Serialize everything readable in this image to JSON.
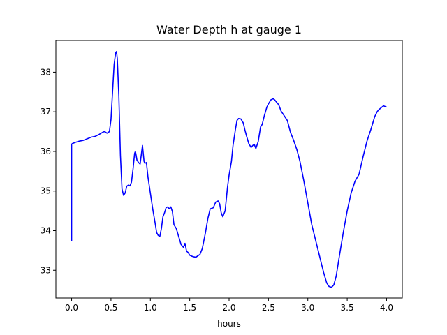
{
  "chart_data": {
    "type": "line",
    "title": "Water Depth h at gauge 1",
    "xlabel": "hours",
    "ylabel": "",
    "xlim": [
      -0.2,
      4.2
    ],
    "ylim": [
      32.3,
      38.8
    ],
    "xticks": [
      "0.0",
      "0.5",
      "1.0",
      "1.5",
      "2.0",
      "2.5",
      "3.0",
      "3.5",
      "4.0"
    ],
    "yticks": [
      "33",
      "34",
      "35",
      "36",
      "37",
      "38"
    ],
    "grid": false,
    "line_color": "#0000ff",
    "series": [
      {
        "x": [
          0.0,
          0.0,
          0.01,
          0.05,
          0.1,
          0.15,
          0.2,
          0.25,
          0.3,
          0.35,
          0.4,
          0.42,
          0.45,
          0.48,
          0.5,
          0.52,
          0.54,
          0.56,
          0.57,
          0.58,
          0.6,
          0.62,
          0.64,
          0.66,
          0.68,
          0.7,
          0.72,
          0.74,
          0.76,
          0.78,
          0.8,
          0.81,
          0.82,
          0.83,
          0.85,
          0.87,
          0.9,
          0.91,
          0.92,
          0.93,
          0.95,
          0.97,
          1.0,
          1.03,
          1.06,
          1.08,
          1.1,
          1.12,
          1.14,
          1.16,
          1.18,
          1.2,
          1.22,
          1.24,
          1.26,
          1.28,
          1.3,
          1.33,
          1.36,
          1.39,
          1.42,
          1.44,
          1.46,
          1.48,
          1.5,
          1.52,
          1.55,
          1.58,
          1.6,
          1.63,
          1.66,
          1.7,
          1.73,
          1.76,
          1.8,
          1.83,
          1.86,
          1.88,
          1.9,
          1.92,
          1.95,
          1.98,
          2.0,
          2.03,
          2.05,
          2.08,
          2.1,
          2.12,
          2.15,
          2.18,
          2.2,
          2.22,
          2.25,
          2.28,
          2.3,
          2.32,
          2.34,
          2.37,
          2.4,
          2.42,
          2.45,
          2.48,
          2.5,
          2.53,
          2.56,
          2.58,
          2.6,
          2.63,
          2.66,
          2.7,
          2.74,
          2.78,
          2.82,
          2.86,
          2.9,
          2.95,
          3.0,
          3.05,
          3.1,
          3.15,
          3.2,
          3.24,
          3.27,
          3.3,
          3.33,
          3.36,
          3.4,
          3.45,
          3.5,
          3.55,
          3.6,
          3.65,
          3.7,
          3.75,
          3.8,
          3.85,
          3.88,
          3.9,
          3.93,
          3.96,
          4.0
        ],
        "y": [
          33.73,
          36.18,
          36.2,
          36.23,
          36.26,
          36.28,
          36.32,
          36.36,
          36.38,
          36.43,
          36.49,
          36.5,
          36.46,
          36.5,
          36.8,
          37.5,
          38.2,
          38.5,
          38.52,
          38.35,
          37.4,
          35.9,
          35.05,
          34.89,
          34.95,
          35.12,
          35.15,
          35.13,
          35.22,
          35.55,
          35.95,
          36.0,
          35.9,
          35.78,
          35.72,
          35.68,
          36.15,
          35.95,
          35.75,
          35.7,
          35.72,
          35.35,
          34.95,
          34.55,
          34.2,
          33.95,
          33.88,
          33.85,
          34.05,
          34.35,
          34.45,
          34.58,
          34.6,
          34.55,
          34.6,
          34.48,
          34.15,
          34.05,
          33.85,
          33.65,
          33.58,
          33.68,
          33.48,
          33.45,
          33.38,
          33.36,
          33.34,
          33.33,
          33.36,
          33.4,
          33.55,
          33.95,
          34.3,
          34.55,
          34.58,
          34.72,
          34.75,
          34.68,
          34.45,
          34.35,
          34.5,
          35.1,
          35.4,
          35.75,
          36.15,
          36.55,
          36.78,
          36.83,
          36.82,
          36.72,
          36.55,
          36.4,
          36.2,
          36.1,
          36.15,
          36.18,
          36.07,
          36.25,
          36.62,
          36.68,
          36.92,
          37.12,
          37.2,
          37.3,
          37.33,
          37.3,
          37.25,
          37.18,
          37.02,
          36.9,
          36.78,
          36.48,
          36.28,
          36.05,
          35.75,
          35.25,
          34.7,
          34.15,
          33.75,
          33.35,
          32.95,
          32.68,
          32.59,
          32.57,
          32.63,
          32.85,
          33.35,
          33.95,
          34.5,
          34.95,
          35.25,
          35.42,
          35.85,
          36.25,
          36.55,
          36.88,
          37.0,
          37.05,
          37.1,
          37.15,
          37.12
        ]
      }
    ]
  }
}
